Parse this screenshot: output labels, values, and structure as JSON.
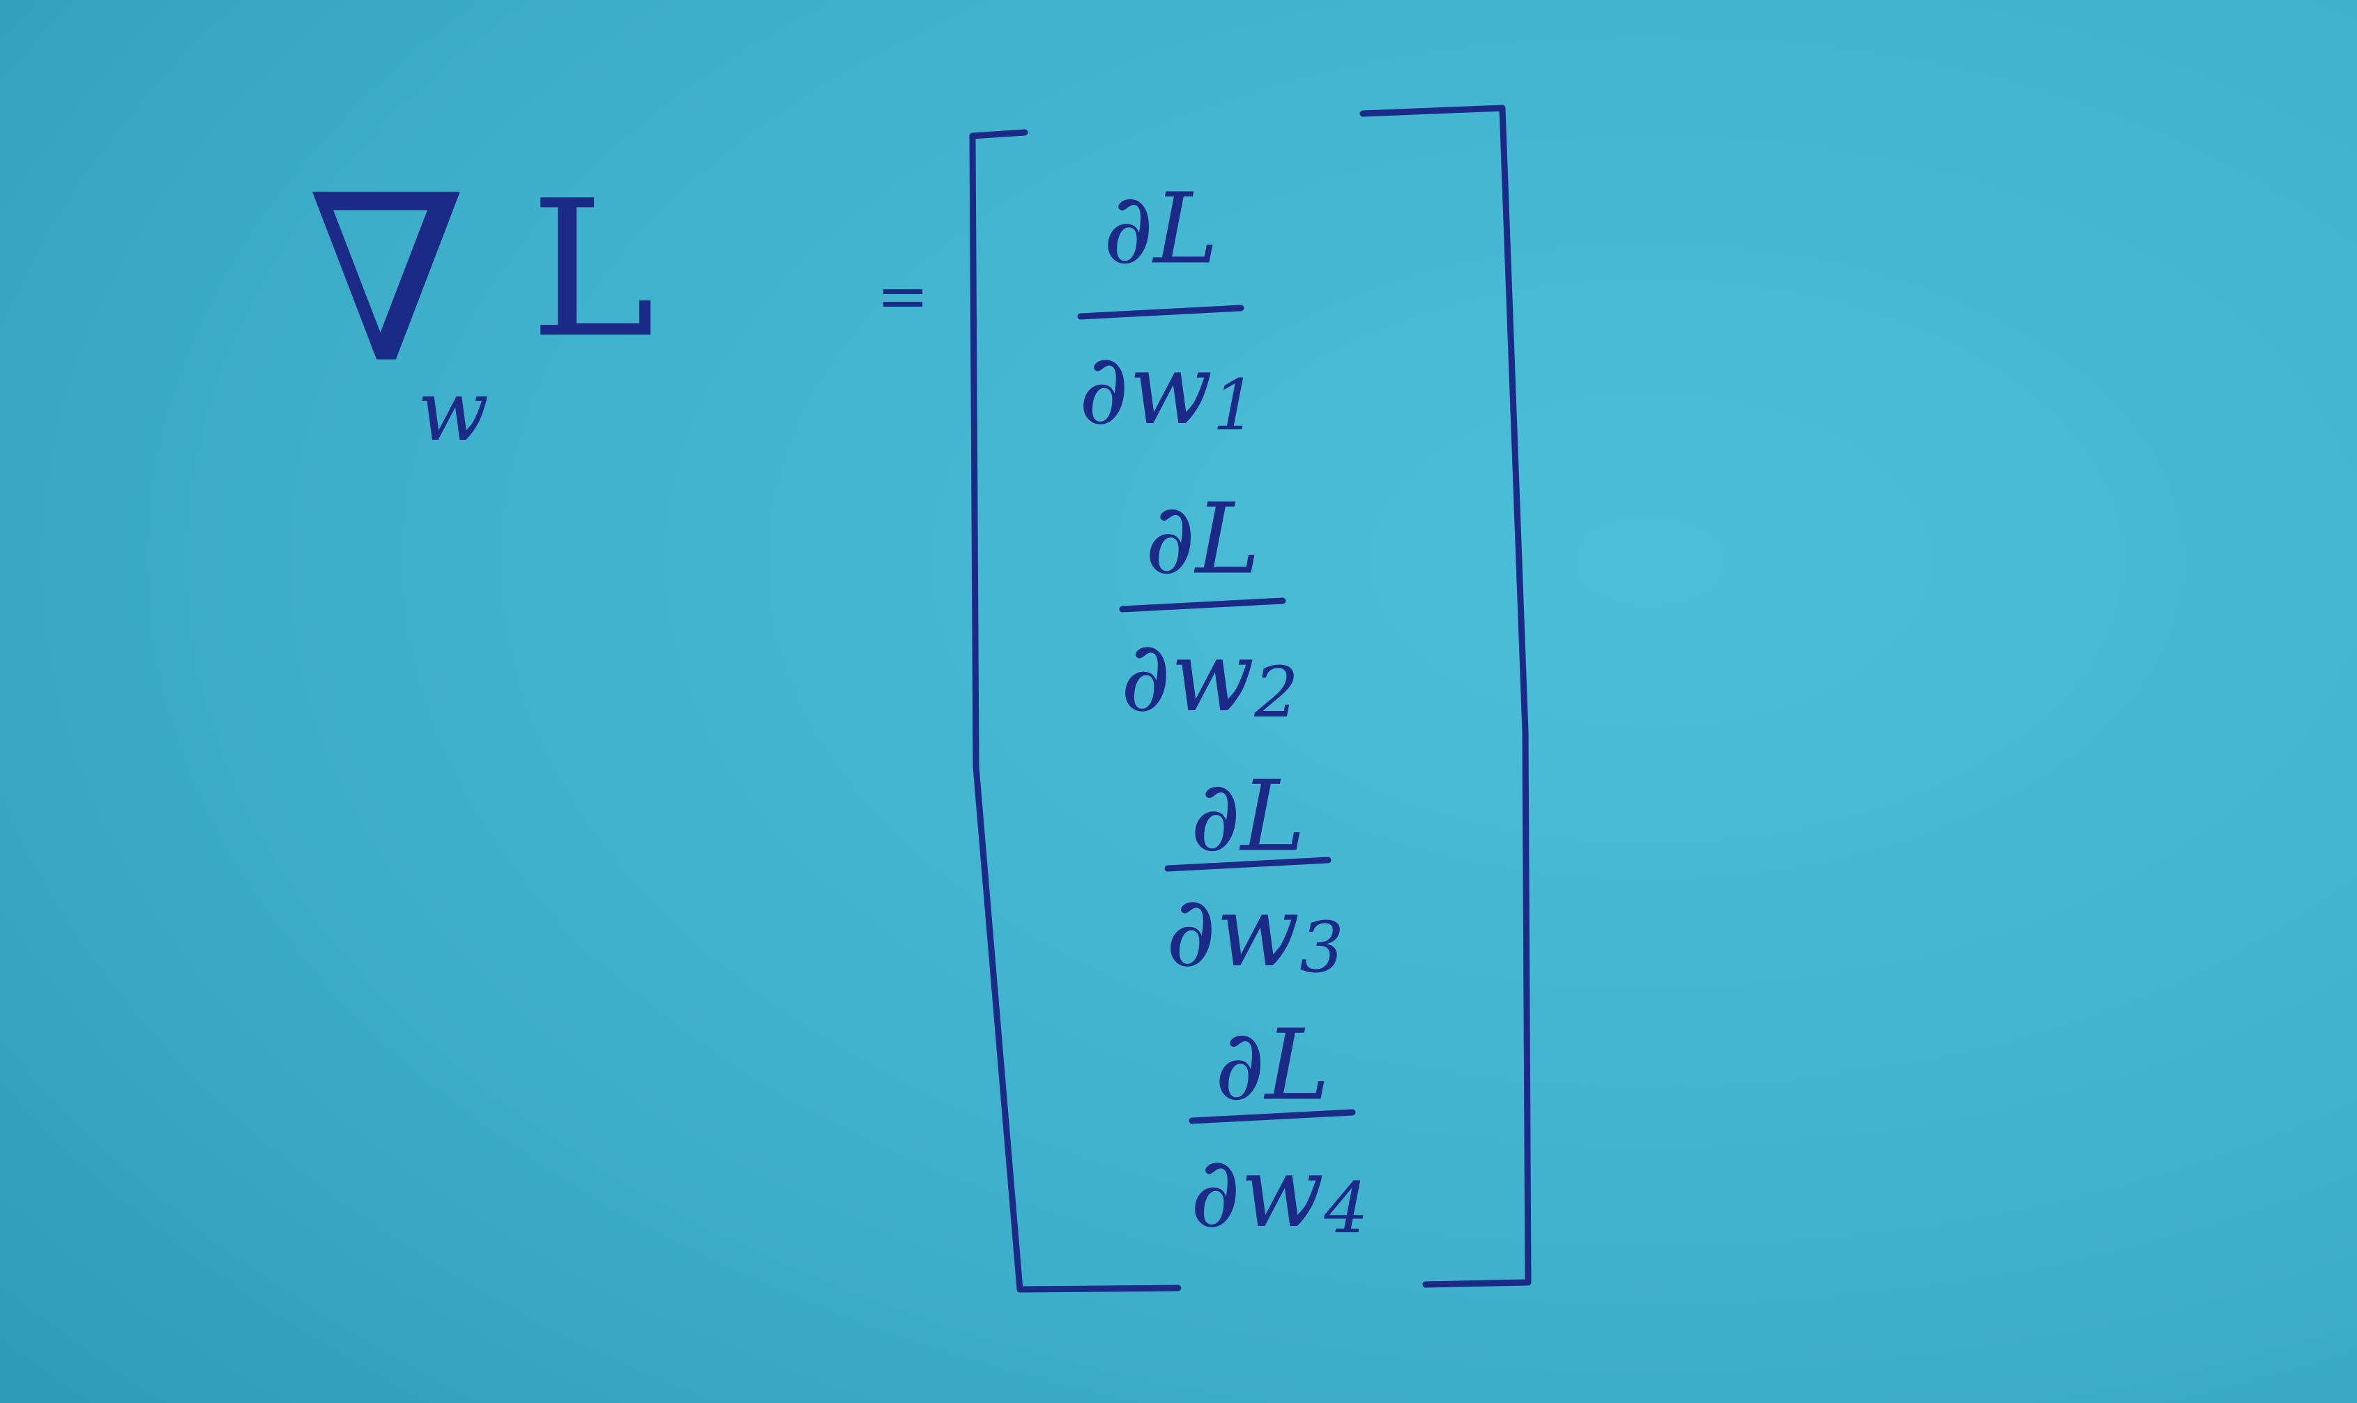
{
  "lhs": {
    "operator": "∇",
    "subscript": "w",
    "function": "L"
  },
  "equals": "=",
  "matrix": {
    "entries": [
      {
        "numerator": "∂L",
        "denominator": {
          "symbol": "∂w",
          "index": "1"
        }
      },
      {
        "numerator": "∂L",
        "denominator": {
          "symbol": "∂w",
          "index": "2"
        }
      },
      {
        "numerator": "∂L",
        "denominator": {
          "symbol": "∂w",
          "index": "3"
        }
      },
      {
        "numerator": "∂L",
        "denominator": {
          "symbol": "∂w",
          "index": "4"
        }
      }
    ]
  }
}
